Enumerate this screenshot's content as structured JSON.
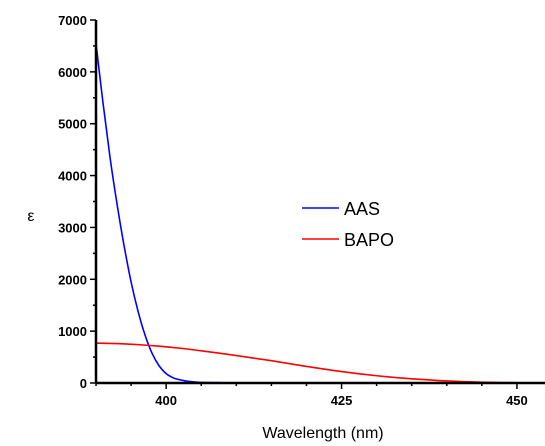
{
  "chart_data": {
    "type": "line",
    "title": "",
    "xlabel": "Wavelength (nm)",
    "ylabel": "ε",
    "xlim": [
      390,
      454
    ],
    "ylim": [
      0,
      7000
    ],
    "xticks": [
      400,
      425,
      450
    ],
    "yticks": [
      0,
      1000,
      2000,
      3000,
      4000,
      5000,
      6000,
      7000
    ],
    "xtick_labels": [
      "400",
      "425",
      "450"
    ],
    "ytick_labels": [
      "0",
      "1000",
      "2000",
      "3000",
      "4000",
      "5000",
      "6000",
      "7000"
    ],
    "grid": false,
    "legend_position": "center-right",
    "series": [
      {
        "name": "AAS",
        "color": "#0000ff",
        "x": [
          390,
          391,
          392,
          393,
          394,
          395,
          396,
          397,
          398,
          399,
          400,
          401,
          402,
          403,
          404,
          405,
          406,
          408,
          410,
          415,
          420,
          430,
          440,
          454
        ],
        "y": [
          6550,
          5400,
          4350,
          3450,
          2650,
          1950,
          1380,
          920,
          570,
          330,
          180,
          100,
          60,
          35,
          20,
          12,
          8,
          4,
          2,
          1,
          0,
          0,
          0,
          0
        ]
      },
      {
        "name": "BAPO",
        "color": "#ff0000",
        "x": [
          390,
          393,
          396,
          399,
          402,
          405,
          410,
          415,
          420,
          425,
          430,
          435,
          440,
          445,
          450,
          454
        ],
        "y": [
          770,
          760,
          740,
          710,
          670,
          620,
          530,
          430,
          320,
          220,
          140,
          80,
          40,
          15,
          5,
          2
        ]
      }
    ]
  }
}
